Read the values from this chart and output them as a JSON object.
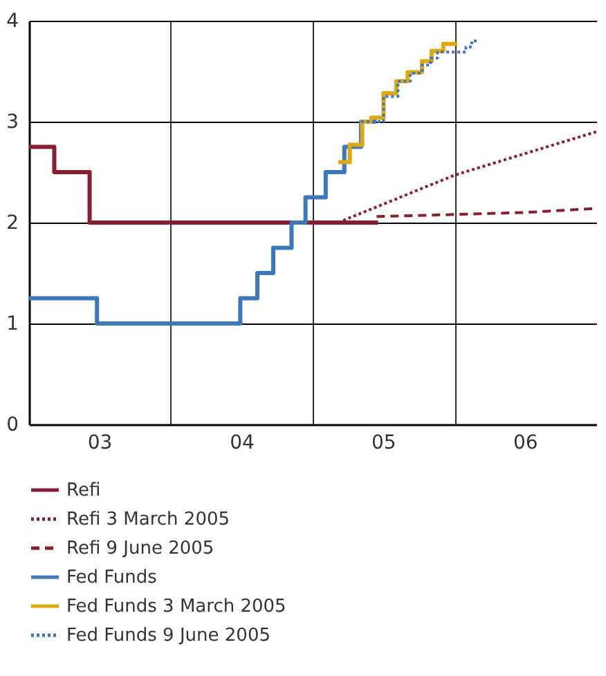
{
  "chart_data": {
    "type": "step",
    "xlim": [
      "2003-01-01",
      "2007-01-01"
    ],
    "xticks": [
      {
        "value": "2003-07-01",
        "label": "03"
      },
      {
        "value": "2004-01-01",
        "label": null
      },
      {
        "value": "2004-07-01",
        "label": "04"
      },
      {
        "value": "2005-01-01",
        "label": null
      },
      {
        "value": "2005-07-01",
        "label": "05"
      },
      {
        "value": "2006-01-01",
        "label": null
      },
      {
        "value": "2006-07-01",
        "label": "06"
      }
    ],
    "ylim": [
      0,
      4
    ],
    "yticks": [
      0,
      1,
      2,
      3,
      4
    ],
    "grid": true,
    "legend": "bottom",
    "marker": "none",
    "series": [
      {
        "name": "Refi",
        "color": "#8b1e2e",
        "line_style": "solid",
        "x": [
          "2003-01-01",
          "2003-03-07",
          "2003-06-06",
          "2005-06-18"
        ],
        "values": [
          2.75,
          2.5,
          2.0,
          2.0
        ]
      },
      {
        "name": "Refi 3 March 2005",
        "type": "line",
        "color": "#8b1e2e",
        "line_style": "dotted",
        "x": [
          "2005-03-07",
          "2006-01-01",
          "2007-01-01"
        ],
        "values": [
          2.0,
          2.47,
          2.9
        ]
      },
      {
        "name": "Refi 9 June 2005",
        "type": "line",
        "color": "#8b1e2e",
        "line_style": "dashed",
        "x": [
          "2005-06-14",
          "2006-01-01",
          "2006-07-01",
          "2007-01-01"
        ],
        "values": [
          2.06,
          2.08,
          2.1,
          2.14
        ]
      },
      {
        "name": "Fed Funds",
        "color": "#3b78c0",
        "line_style": "solid",
        "x": [
          "2003-01-01",
          "2003-06-25",
          "2004-06-28",
          "2004-08-11",
          "2004-09-21",
          "2004-11-07",
          "2004-12-13",
          "2005-02-03",
          "2005-03-23",
          "2005-05-05",
          "2005-06-14"
        ],
        "values": [
          1.25,
          1.0,
          1.25,
          1.5,
          1.75,
          2.0,
          2.25,
          2.5,
          2.75,
          3.0,
          3.0
        ]
      },
      {
        "name": "Fed Funds 3 March 2005",
        "color": "#e0a810",
        "line_style": "solid",
        "x": [
          "2005-03-07",
          "2005-04-06",
          "2005-05-08",
          "2005-05-31",
          "2005-07-02",
          "2005-08-04",
          "2005-09-02",
          "2005-10-09",
          "2005-11-03",
          "2005-12-03",
          "2006-01-08"
        ],
        "values": [
          2.6,
          2.77,
          3.0,
          3.04,
          3.28,
          3.4,
          3.49,
          3.6,
          3.7,
          3.77,
          3.77
        ]
      },
      {
        "name": "Fed Funds 9 June 2005",
        "color": "#3b78c0",
        "line_style": "dotted",
        "x": [
          "2005-05-05",
          "2005-07-02",
          "2005-08-08",
          "2005-09-09",
          "2005-10-09",
          "2005-10-31",
          "2005-11-18",
          "2006-01-30",
          "2006-02-14",
          "2006-03-04"
        ],
        "values": [
          3.0,
          3.25,
          3.4,
          3.48,
          3.56,
          3.63,
          3.69,
          3.74,
          3.8,
          3.8
        ]
      }
    ]
  }
}
